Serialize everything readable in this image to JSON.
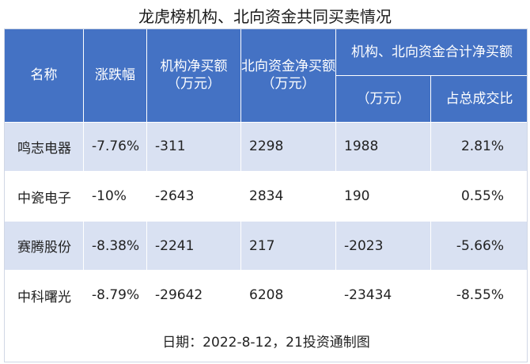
{
  "title": "龙虎榜机构、北向资金共同买卖情况",
  "header": {
    "name": "名称",
    "change": "涨跌幅",
    "inst_net": "机构净买额（万元）",
    "north_net": "北向资金净买额（万元）",
    "combined_group": "机构、北向资金合计净买额",
    "combined_unit": "（万元）",
    "combined_ratio": "占总成交比"
  },
  "rows": [
    {
      "name": "鸣志电器",
      "change": "-7.76%",
      "inst_net": "-311",
      "north_net": "2298",
      "combined": "1988",
      "ratio": "2.81%"
    },
    {
      "name": "中瓷电子",
      "change": "-10%",
      "inst_net": "-2643",
      "north_net": "2834",
      "combined": "190",
      "ratio": "0.55%"
    },
    {
      "name": "赛腾股份",
      "change": "-8.38%",
      "inst_net": "-2241",
      "north_net": "217",
      "combined": "-2023",
      "ratio": "-5.66%"
    },
    {
      "name": "中科曙光",
      "change": "-8.79%",
      "inst_net": "-29642",
      "north_net": "6208",
      "combined": "-23434",
      "ratio": "-8.55%"
    }
  ],
  "footer": "日期：2022-8-12，21投资通制图",
  "colors": {
    "header_bg": "#4472c4",
    "stripe_bg": "#d9e1f2"
  }
}
